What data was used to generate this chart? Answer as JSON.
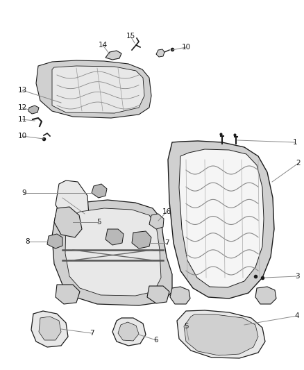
{
  "bg": "#ffffff",
  "fg": "#1a1a1a",
  "fig_w": 4.38,
  "fig_h": 5.33,
  "dpi": 100,
  "label_fs": 7.5,
  "line_color": "#888888",
  "part_edge": "#1a1a1a",
  "part_fill_light": "#e8e8e8",
  "part_fill_mid": "#d0d0d0",
  "part_fill_dark": "#b8b8b8",
  "part_fill_white": "#f5f5f5"
}
